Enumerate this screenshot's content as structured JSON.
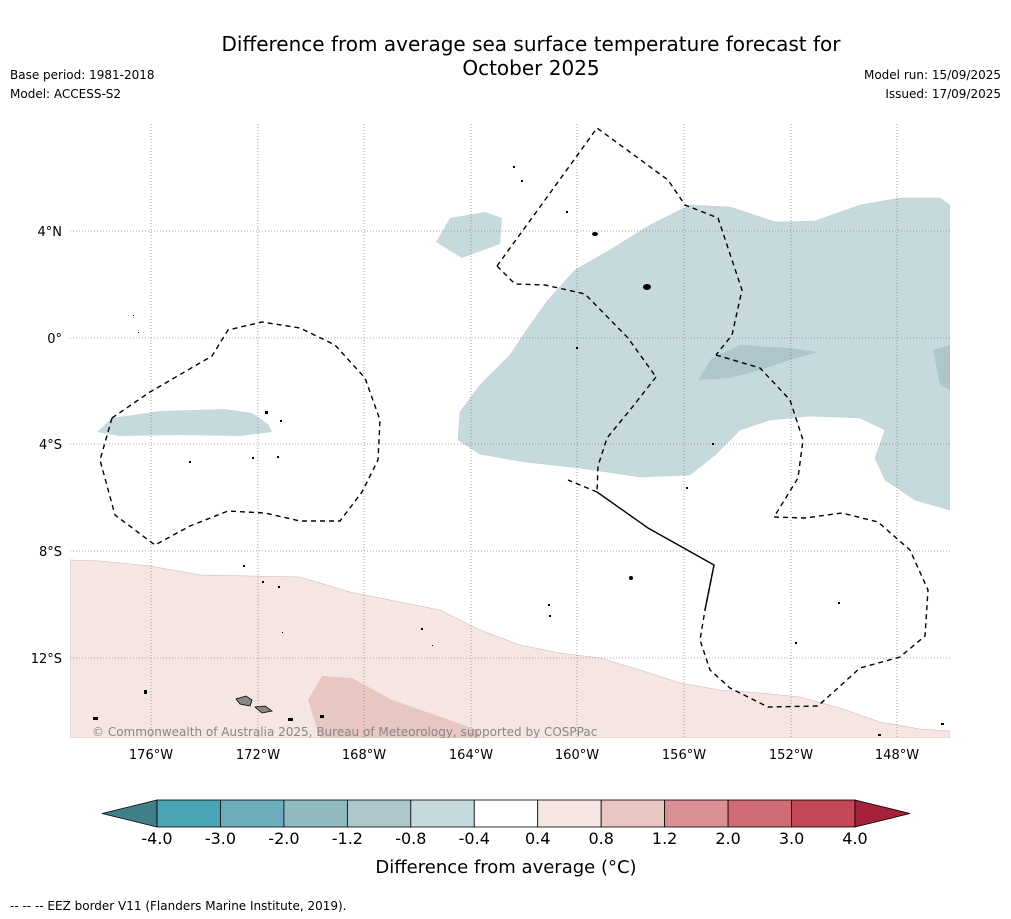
{
  "title_line1": "Difference from average sea surface temperature forecast for",
  "title_line2": "October 2025",
  "base_period": "Base period: 1981-2018",
  "model": "Model: ACCESS-S2",
  "model_run": "Model run: 15/09/2025",
  "issued": "Issued: 17/09/2025",
  "map": {
    "lon_ticks": [
      "176°W",
      "172°W",
      "168°W",
      "164°W",
      "160°W",
      "156°W",
      "152°W",
      "148°W"
    ],
    "lat_ticks": [
      "4°N",
      "0°",
      "4°S",
      "8°S",
      "12°S"
    ],
    "copyright": "© Commonwealth of Australia 2025, Bureau of Meteorology, supported by COSPPac"
  },
  "colorbar": {
    "title": "Difference from average (°C)",
    "labels": [
      "-4.0",
      "-3.0",
      "-2.0",
      "-1.2",
      "-0.8",
      "-0.4",
      "0.4",
      "0.8",
      "1.2",
      "2.0",
      "3.0",
      "4.0"
    ],
    "colors": [
      "#3f7f88",
      "#4aa4b3",
      "#6caebb",
      "#8fbac0",
      "#adc6cb",
      "#c6d9dc",
      "#ffffff",
      "#f5e6e4",
      "#e8c6c1",
      "#d98f94",
      "#cf6b74",
      "#c24757",
      "#a8213a"
    ]
  },
  "footnote": "--  --  -- EEZ border V11 (Flanders Marine Institute, 2019)."
}
